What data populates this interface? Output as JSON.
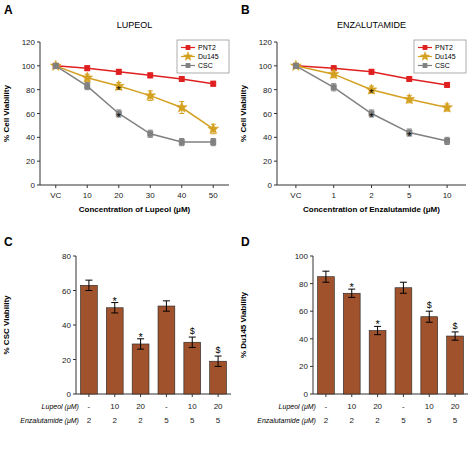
{
  "chart_data": [
    {
      "type": "line",
      "title": "A",
      "subtitle": "LUPEOL",
      "xlabel": "Concentration of Lupeol (μM)",
      "ylabel": "% Cell Viability",
      "categories": [
        "VC",
        "10",
        "20",
        "30",
        "40",
        "50"
      ],
      "series": [
        {
          "name": "PNT2",
          "color": "#e02020",
          "marker": "square",
          "values": [
            100,
            98,
            95,
            92,
            89,
            85
          ],
          "errors": [
            1.5,
            2,
            2,
            2,
            2,
            2
          ]
        },
        {
          "name": "Du145",
          "color": "#d4a020",
          "marker": "star",
          "values": [
            100,
            90,
            83,
            75,
            65,
            47
          ],
          "errors": [
            2,
            3,
            3,
            4,
            5,
            4
          ]
        },
        {
          "name": "CSC",
          "color": "#808080",
          "marker": "square",
          "values": [
            100,
            83,
            60,
            43,
            36,
            36
          ],
          "errors": [
            2,
            3,
            3,
            3,
            3,
            3
          ]
        }
      ],
      "annotations": [
        {
          "text": "*",
          "x": "20",
          "y": 76
        },
        {
          "text": "*",
          "x": "20",
          "y": 54
        }
      ],
      "ylim": [
        0,
        120
      ],
      "yticks": [
        0,
        20,
        40,
        60,
        80,
        100,
        120
      ],
      "legend": "upper right"
    },
    {
      "type": "line",
      "title": "B",
      "subtitle": "ENZALUTAMIDE",
      "xlabel": "Concentration of Enzalutamide (μM)",
      "ylabel": "% Cell Viability",
      "categories": [
        "VC",
        "1",
        "2",
        "5",
        "10"
      ],
      "series": [
        {
          "name": "PNT2",
          "color": "#e02020",
          "marker": "square",
          "values": [
            100,
            98,
            95,
            89,
            84
          ],
          "errors": [
            1.5,
            2,
            2,
            2,
            2
          ]
        },
        {
          "name": "Du145",
          "color": "#d4a020",
          "marker": "star",
          "values": [
            100,
            93,
            80,
            72,
            65
          ],
          "errors": [
            2,
            3,
            3,
            3,
            3
          ]
        },
        {
          "name": "CSC",
          "color": "#808080",
          "marker": "square",
          "values": [
            100,
            82,
            60,
            44,
            37
          ],
          "errors": [
            2,
            3,
            3,
            3,
            3
          ]
        }
      ],
      "annotations": [
        {
          "text": "*",
          "x": "2",
          "y": 74
        },
        {
          "text": "*",
          "x": "2",
          "y": 54
        },
        {
          "text": "*",
          "x": "5",
          "y": 38
        }
      ],
      "ylim": [
        0,
        120
      ],
      "yticks": [
        0,
        20,
        40,
        60,
        80,
        100,
        120
      ],
      "legend": "upper right"
    },
    {
      "type": "bar",
      "title": "C",
      "ylabel": "% CSC Viability",
      "values": [
        63,
        50,
        29,
        51,
        30,
        19
      ],
      "errors": [
        3,
        3,
        3,
        3,
        3,
        3
      ],
      "color": "#a0522d",
      "category_rows": [
        {
          "name": "Lupeol (μM)",
          "labels": [
            "-",
            "10",
            "20",
            "-",
            "10",
            "20"
          ]
        },
        {
          "name": "Enzalutamide (μM)",
          "labels": [
            "2",
            "2",
            "2",
            "5",
            "5",
            "5"
          ]
        }
      ],
      "bar_marks": [
        {
          "index": 1,
          "text": "*"
        },
        {
          "index": 2,
          "text": "*"
        },
        {
          "index": 4,
          "text": "$"
        },
        {
          "index": 5,
          "text": "$"
        }
      ],
      "ylim": [
        0,
        80
      ],
      "yticks": [
        0,
        20,
        40,
        60,
        80
      ]
    },
    {
      "type": "bar",
      "title": "D",
      "ylabel": "% Du145 Viability",
      "values": [
        85,
        73,
        46,
        77,
        56,
        42
      ],
      "errors": [
        4,
        3,
        3,
        4,
        4,
        3
      ],
      "color": "#a0522d",
      "category_rows": [
        {
          "name": "Lupeol (μM)",
          "labels": [
            "-",
            "10",
            "20",
            "-",
            "10",
            "20"
          ]
        },
        {
          "name": "Enzalutamide (μM)",
          "labels": [
            "2",
            "2",
            "2",
            "5",
            "5",
            "5"
          ]
        }
      ],
      "bar_marks": [
        {
          "index": 1,
          "text": "*"
        },
        {
          "index": 2,
          "text": "*"
        },
        {
          "index": 4,
          "text": "$"
        },
        {
          "index": 5,
          "text": "$"
        }
      ],
      "ylim": [
        0,
        100
      ],
      "yticks": [
        0,
        20,
        40,
        60,
        80,
        100
      ]
    }
  ]
}
